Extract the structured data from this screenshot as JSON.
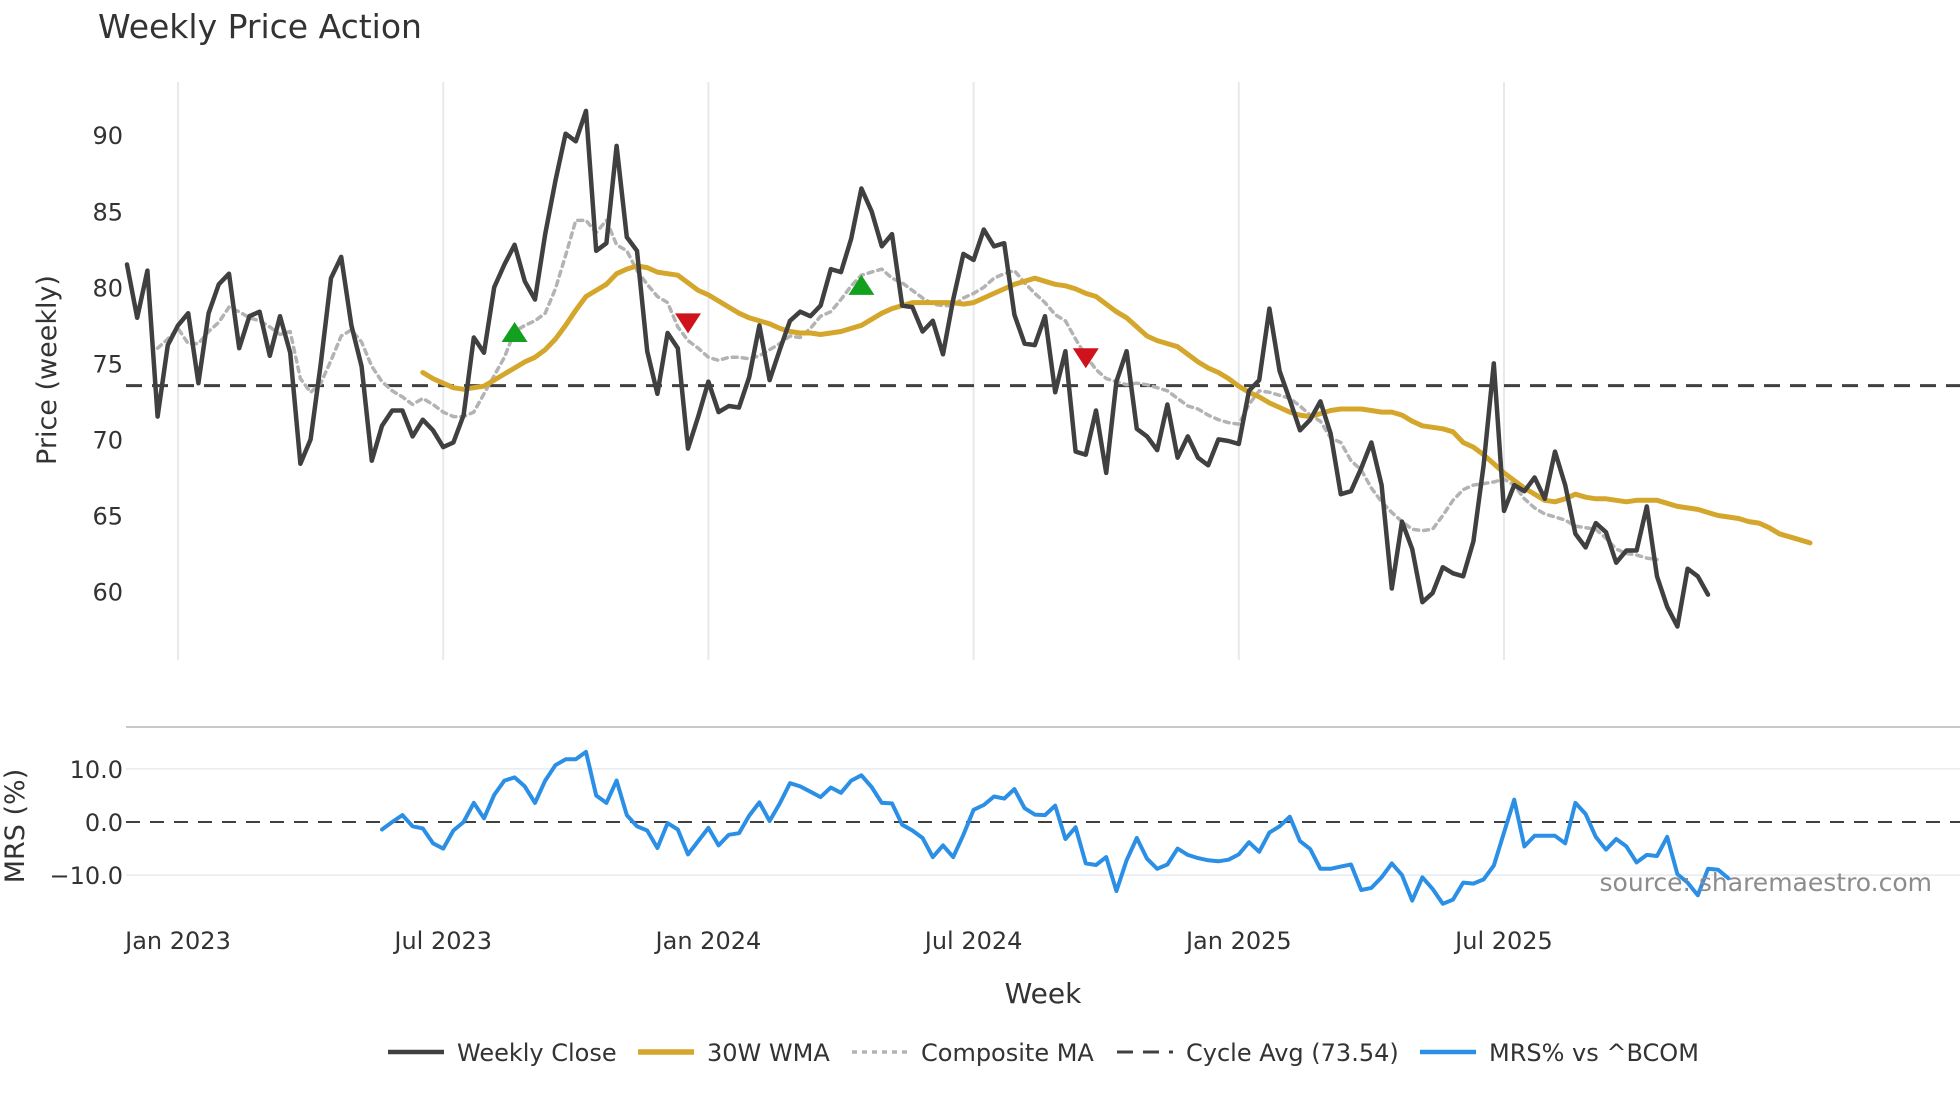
{
  "chart_data": {
    "type": "line",
    "title": "Weekly Price Action",
    "xlabel": "Week",
    "x_ticks": [
      "Jan 2023",
      "Jul 2023",
      "Jan 2024",
      "Jul 2024",
      "Jan 2025",
      "Jul 2025"
    ],
    "x_tick_weeks": [
      5,
      31,
      57,
      83,
      109,
      135
    ],
    "source": "source: sharemaestro.com",
    "price_panel": {
      "ylabel": "Price (weekly)",
      "ylim": [
        55.5,
        93.5
      ],
      "yticks": [
        60,
        65,
        70,
        75,
        80,
        85,
        90
      ],
      "cycle_avg": 73.54,
      "series": [
        {
          "name": "Weekly Close",
          "color": "#404040",
          "start_week": 0,
          "values": [
            81.5,
            78,
            81.1,
            71.5,
            76.2,
            77.5,
            78.3,
            73.7,
            78.3,
            80.2,
            80.9,
            76,
            78.1,
            78.4,
            75.5,
            78.1,
            75.7,
            68.4,
            70,
            75,
            80.6,
            82,
            77.5,
            74.8,
            68.6,
            70.9,
            71.9,
            71.9,
            70.2,
            71.3,
            70.6,
            69.5,
            69.8,
            71.6,
            76.7,
            75.7,
            80,
            81.5,
            82.8,
            80.4,
            79.2,
            83.5,
            87,
            90.1,
            89.6,
            91.6,
            82.4,
            82.9,
            89.3,
            83.3,
            82.4,
            75.8,
            73,
            77,
            76,
            69.4,
            71.5,
            73.8,
            71.8,
            72.2,
            72.1,
            74.1,
            77.5,
            73.9,
            75.9,
            77.8,
            78.4,
            78.1,
            78.8,
            81.2,
            81,
            83.2,
            86.5,
            85,
            82.7,
            83.5,
            78.8,
            78.7,
            77.1,
            77.8,
            75.6,
            79.2,
            82.2,
            81.8,
            83.8,
            82.7,
            82.9,
            78.2,
            76.3,
            76.2,
            78.1,
            73.1,
            75.8,
            69.2,
            69,
            71.9,
            67.8,
            73.8,
            75.8,
            70.7,
            70.2,
            69.3,
            72.3,
            68.8,
            70.2,
            68.8,
            68.3,
            70,
            69.9,
            69.7,
            73.2,
            73.9,
            78.6,
            74.5,
            72.6,
            70.6,
            71.3,
            72.5,
            70.4,
            66.4,
            66.6,
            68.1,
            69.8,
            67,
            60.2,
            64.6,
            62.8,
            59.3,
            59.9,
            61.6,
            61.2,
            61,
            63.3,
            68.3,
            75,
            65.3,
            67,
            66.6,
            67.5,
            66.1,
            69.2,
            67,
            63.8,
            62.9,
            64.5,
            63.9,
            61.9,
            62.7,
            62.7,
            65.6,
            61,
            59,
            57.7,
            61.5,
            61,
            59.8
          ]
        },
        {
          "name": "30W WMA",
          "color": "#d4a72c",
          "start_week": 29,
          "values": [
            74.4,
            74,
            73.7,
            73.4,
            73.3,
            73.4,
            73.5,
            73.9,
            74.3,
            74.7,
            75.1,
            75.4,
            75.9,
            76.6,
            77.5,
            78.5,
            79.4,
            79.8,
            80.2,
            80.9,
            81.2,
            81.4,
            81.3,
            81,
            80.9,
            80.8,
            80.3,
            79.8,
            79.5,
            79.1,
            78.7,
            78.3,
            78,
            77.8,
            77.6,
            77.3,
            77.1,
            77,
            77,
            76.9,
            77,
            77.1,
            77.3,
            77.5,
            77.9,
            78.3,
            78.6,
            78.8,
            79,
            79,
            79,
            79,
            79,
            78.9,
            79,
            79.3,
            79.6,
            79.9,
            80.2,
            80.4,
            80.6,
            80.4,
            80.2,
            80.1,
            79.9,
            79.6,
            79.4,
            78.9,
            78.4,
            78,
            77.4,
            76.8,
            76.5,
            76.3,
            76.1,
            75.6,
            75.1,
            74.7,
            74.4,
            74,
            73.5,
            73.1,
            72.8,
            72.4,
            72.1,
            71.8,
            71.6,
            71.5,
            71.7,
            71.9,
            72,
            72,
            72,
            71.9,
            71.8,
            71.8,
            71.6,
            71.2,
            70.9,
            70.8,
            70.7,
            70.5,
            69.8,
            69.5,
            69,
            68.4,
            67.8,
            67.3,
            66.8,
            66.4,
            66,
            65.9,
            66.1,
            66.4,
            66.2,
            66.1,
            66.1,
            66,
            65.9,
            66,
            66,
            66,
            65.8,
            65.6,
            65.5,
            65.4,
            65.2,
            65,
            64.9,
            64.8,
            64.6,
            64.5,
            64.2,
            63.8,
            63.6,
            63.4,
            63.2
          ]
        },
        {
          "name": "Composite MA",
          "color": "#b3b3b3",
          "start_week": 3,
          "values": [
            76,
            76.6,
            77.3,
            76.3,
            76.3,
            77.1,
            77.7,
            78.7,
            78.4,
            78,
            77.8,
            77.4,
            76.9,
            77.1,
            74,
            73.1,
            73.7,
            75.2,
            76.8,
            77.2,
            76.4,
            74.8,
            73.8,
            73.2,
            72.8,
            72.3,
            72.7,
            72.3,
            71.8,
            71.5,
            71.5,
            71.8,
            73,
            74.2,
            75.4,
            77.1,
            77.5,
            77.8,
            78.3,
            79.9,
            82.1,
            84.4,
            84.4,
            83.6,
            84.4,
            82.8,
            82.4,
            81.1,
            80.2,
            79.4,
            79,
            77.4,
            76.5,
            76,
            75.4,
            75.2,
            75.4,
            75.4,
            75.3,
            75.5,
            75.9,
            76.3,
            76.8,
            76.7,
            77.3,
            78.1,
            78.4,
            79.2,
            80.1,
            80.8,
            81,
            81.2,
            80.6,
            80.3,
            79.8,
            79.3,
            78.9,
            78.8,
            78.8,
            79.3,
            79.6,
            80,
            80.6,
            80.9,
            81.1,
            80.3,
            79.6,
            79,
            78.2,
            77.8,
            76.6,
            75.5,
            74.6,
            74,
            73.8,
            73.6,
            73.7,
            73.6,
            73.4,
            73.2,
            72.7,
            72.2,
            72,
            71.6,
            71.3,
            71.1,
            71,
            72.3,
            73.2,
            73.1,
            72.9,
            72.7,
            72.2,
            71.6,
            71.2,
            70.1,
            69.8,
            68.6,
            68,
            66.8,
            65.9,
            65.2,
            64.6,
            64.1,
            64,
            64.1,
            65,
            66,
            66.7,
            67,
            67.1,
            67.2,
            67.4,
            67,
            66.1,
            65.5,
            65.1,
            64.9,
            64.7,
            64.3,
            64.2,
            64.1,
            63.5,
            62.8,
            62.5,
            62.4,
            62.2,
            62.1
          ]
        }
      ],
      "signals": [
        {
          "type": "buy",
          "week": 38,
          "price": 77.0
        },
        {
          "type": "sell",
          "week": 55,
          "price": 77.7
        },
        {
          "type": "buy",
          "week": 72,
          "price": 80.1
        },
        {
          "type": "sell",
          "week": 94,
          "price": 75.4
        }
      ]
    },
    "mrs_panel": {
      "ylabel": "MRS (%)",
      "ylim": [
        -16,
        14.5
      ],
      "yticks": [
        10.0,
        0.0,
        -10.0
      ],
      "ytick_labels": [
        "10.0",
        "0.0",
        "−10.0"
      ],
      "series": [
        {
          "name": "MRS% vs ^BCOM",
          "color": "#2b8fe6",
          "start_week": 25,
          "values": [
            -1.4,
            0,
            1.3,
            -0.8,
            -1.2,
            -4,
            -5,
            -1.6,
            0,
            3.6,
            0.7,
            5.1,
            7.8,
            8.4,
            6.7,
            3.6,
            7.8,
            10.7,
            11.8,
            11.8,
            13.2,
            5,
            3.6,
            7.8,
            1.3,
            -0.8,
            -1.6,
            -4.9,
            -0.2,
            -1.4,
            -6.1,
            -3.6,
            -1.1,
            -4.4,
            -2.4,
            -2.1,
            1.2,
            3.7,
            0.2,
            3.5,
            7.3,
            6.7,
            5.7,
            4.7,
            6.5,
            5.5,
            7.8,
            8.8,
            6.6,
            3.6,
            3.5,
            -0.5,
            -1.6,
            -3,
            -6.6,
            -4.4,
            -6.6,
            -2.4,
            2.3,
            3.2,
            4.8,
            4.4,
            6.2,
            2.6,
            1.4,
            1.3,
            3.1,
            -3.2,
            -1,
            -7.8,
            -8.1,
            -6.6,
            -13,
            -7.2,
            -3,
            -6.9,
            -8.8,
            -8,
            -5,
            -6.2,
            -6.8,
            -7.2,
            -7.4,
            -7.1,
            -6.1,
            -3.8,
            -5.6,
            -2,
            -0.8,
            1,
            -3.6,
            -5.1,
            -8.8,
            -8.8,
            -8.4,
            -8,
            -12.8,
            -12.4,
            -10.4,
            -7.8,
            -10,
            -14.8,
            -10.4,
            -12.6,
            -15.4,
            -14.6,
            -11.4,
            -11.6,
            -10.8,
            -8.2,
            -2,
            4.2,
            -4.6,
            -2.6,
            -2.6,
            -2.6,
            -4,
            3.6,
            1.5,
            -2.8,
            -5.2,
            -3.2,
            -4.6,
            -7.6,
            -6.2,
            -6.4,
            -2.8,
            -9.8,
            -11.4,
            -13.8,
            -8.8,
            -9,
            -10.6
          ]
        }
      ]
    },
    "legend": [
      {
        "label": "Weekly Close",
        "style": "solid",
        "color": "#404040"
      },
      {
        "label": "30W WMA",
        "style": "solid-thick",
        "color": "#d4a72c"
      },
      {
        "label": "Composite MA",
        "style": "dotted",
        "color": "#b3b3b3"
      },
      {
        "label": "Cycle Avg (73.54)",
        "style": "dashed",
        "color": "#404040"
      },
      {
        "label": "MRS% vs ^BCOM",
        "style": "solid",
        "color": "#2b8fe6"
      }
    ]
  }
}
